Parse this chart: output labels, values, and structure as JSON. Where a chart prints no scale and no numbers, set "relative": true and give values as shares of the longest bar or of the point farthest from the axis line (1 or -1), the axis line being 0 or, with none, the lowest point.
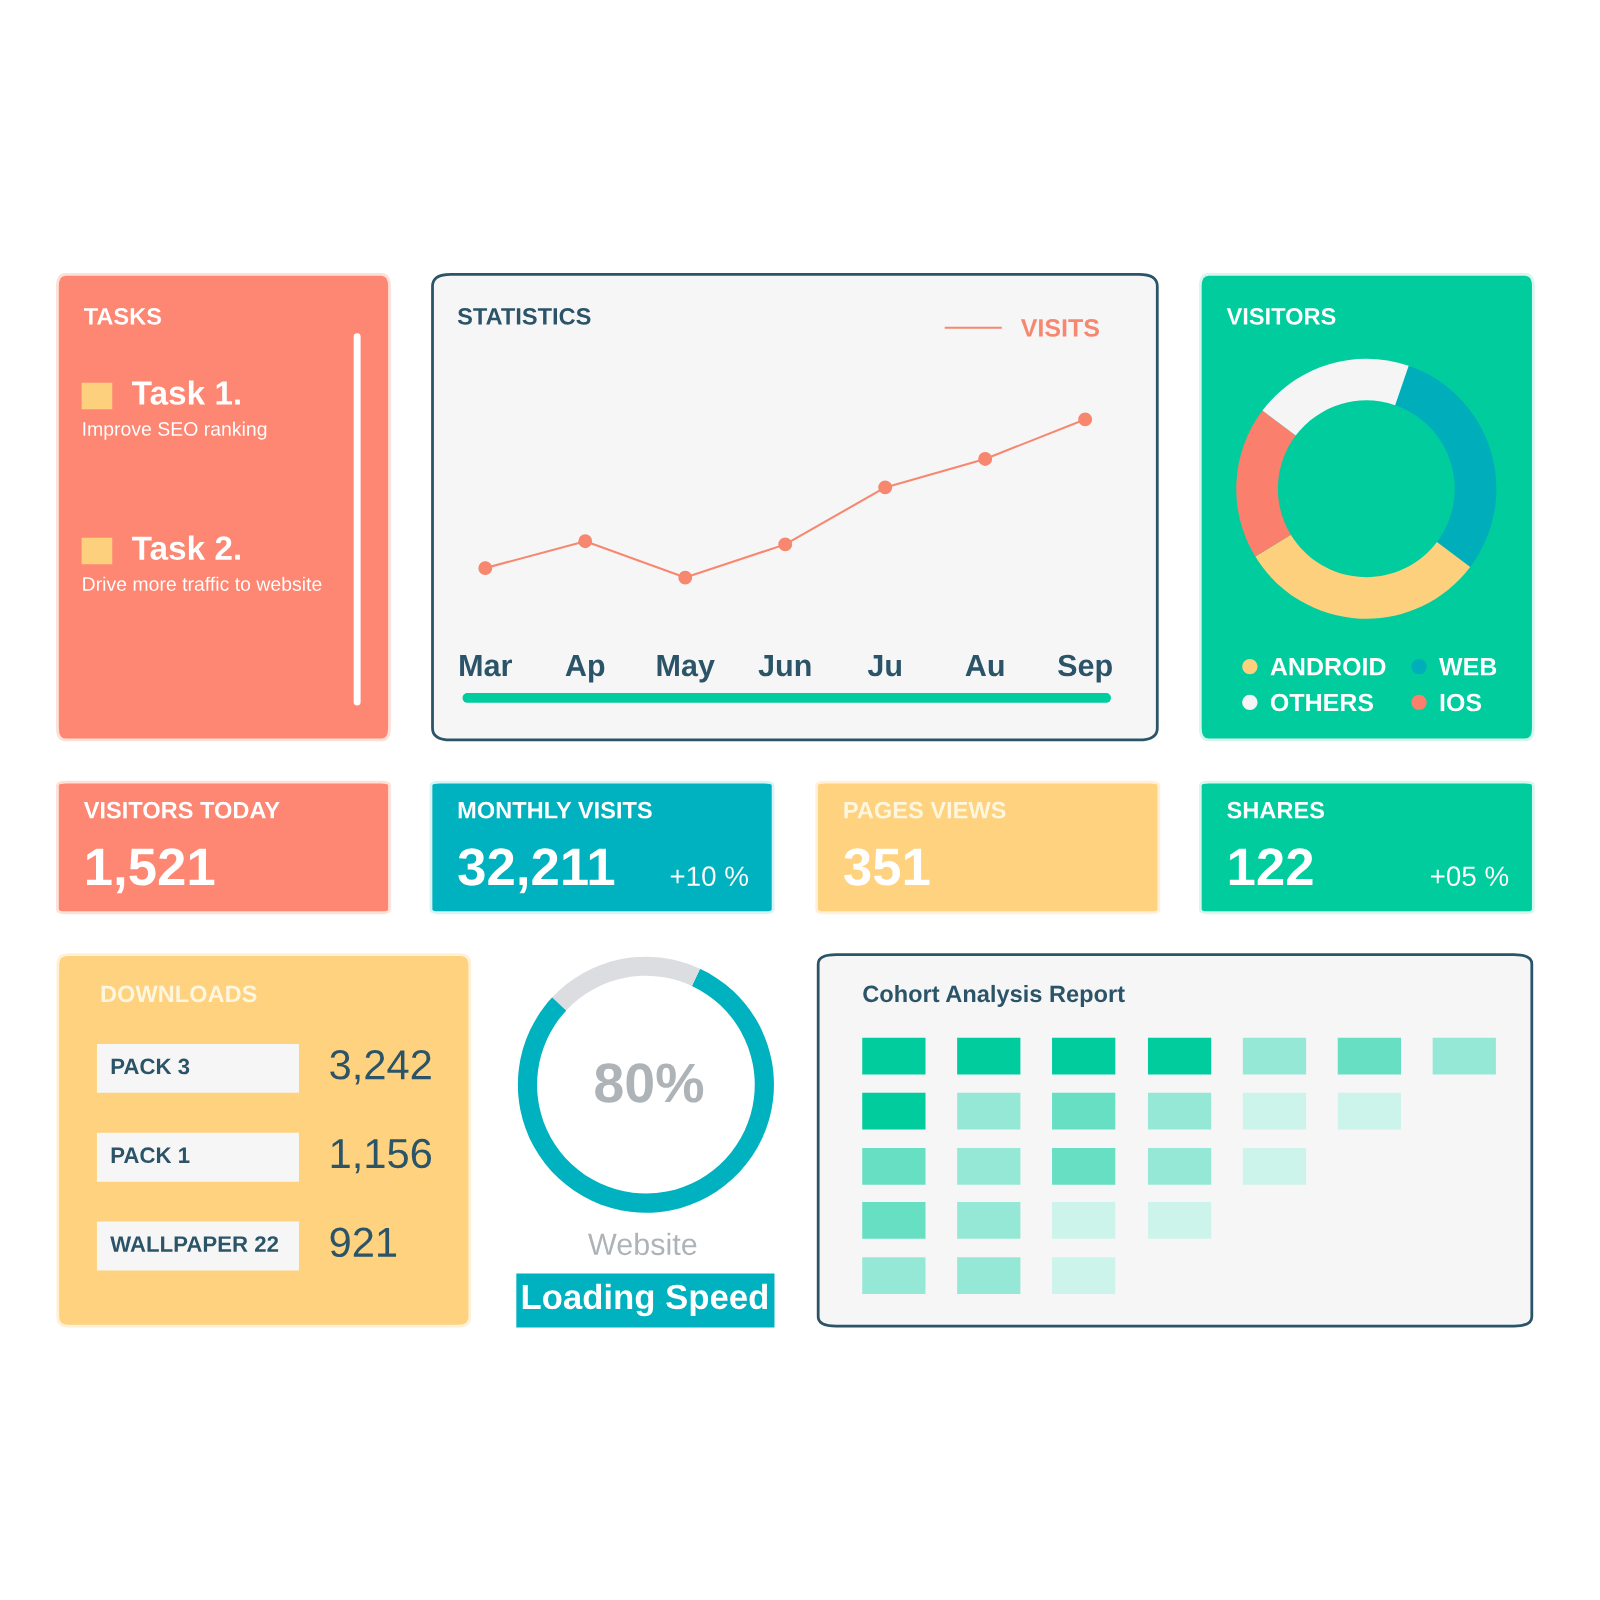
{
  "chart_data": [
    {
      "type": "other",
      "title": "TASKS",
      "annotations": [
        "Task 1.",
        "Improve SEO ranking",
        "Task 2.",
        "Drive more traffic to website"
      ]
    },
    {
      "type": "line",
      "title": "STATISTICS",
      "categories": [
        "Mar",
        "Ap",
        "May",
        "Jun",
        "Ju",
        "Au",
        "Sep"
      ],
      "relative": true,
      "legend": "top right",
      "marker": "circle",
      "line_style": "solid",
      "series": [
        {
          "name": "VISITS",
          "color": "#f7876f",
          "values": [
            0.06,
            0.23,
            0,
            0.21,
            0.57,
            0.75,
            1
          ]
        }
      ]
    },
    {
      "type": "donut",
      "title": "VISITORS",
      "categories": [
        "WEB",
        "ANDROID",
        "IOS",
        "OTHERS"
      ],
      "values": [
        30,
        31,
        19,
        20
      ],
      "colors": [
        "#00adbb",
        "#fdd07e",
        "#fa7f6c",
        "#f5f5f5"
      ],
      "legend": "bottom"
    },
    {
      "type": "other",
      "title": "VISITORS TODAY",
      "annotations": [
        "1,521"
      ]
    },
    {
      "type": "other",
      "title": "MONTHLY VISITS",
      "annotations": [
        "32,211",
        "+10 %"
      ]
    },
    {
      "type": "other",
      "title": "PAGES VIEWS",
      "annotations": [
        "351"
      ]
    },
    {
      "type": "other",
      "title": "SHARES",
      "annotations": [
        "122",
        "+05 %"
      ]
    },
    {
      "type": "other",
      "title": "DOWNLOADS",
      "annotations": [
        "PACK 3",
        "3,242",
        "PACK 1",
        "1,156",
        "WALLPAPER 22",
        "921"
      ]
    },
    {
      "type": "donut",
      "title": "Loading Speed",
      "categories": [
        null,
        null
      ],
      "values": [
        80,
        20
      ],
      "colors": [
        "#00b2bf",
        "#dcdde0"
      ],
      "annotations": [
        "80%",
        "Website"
      ]
    },
    {
      "type": "other",
      "title": "Cohort Analysis Report"
    }
  ]
}
